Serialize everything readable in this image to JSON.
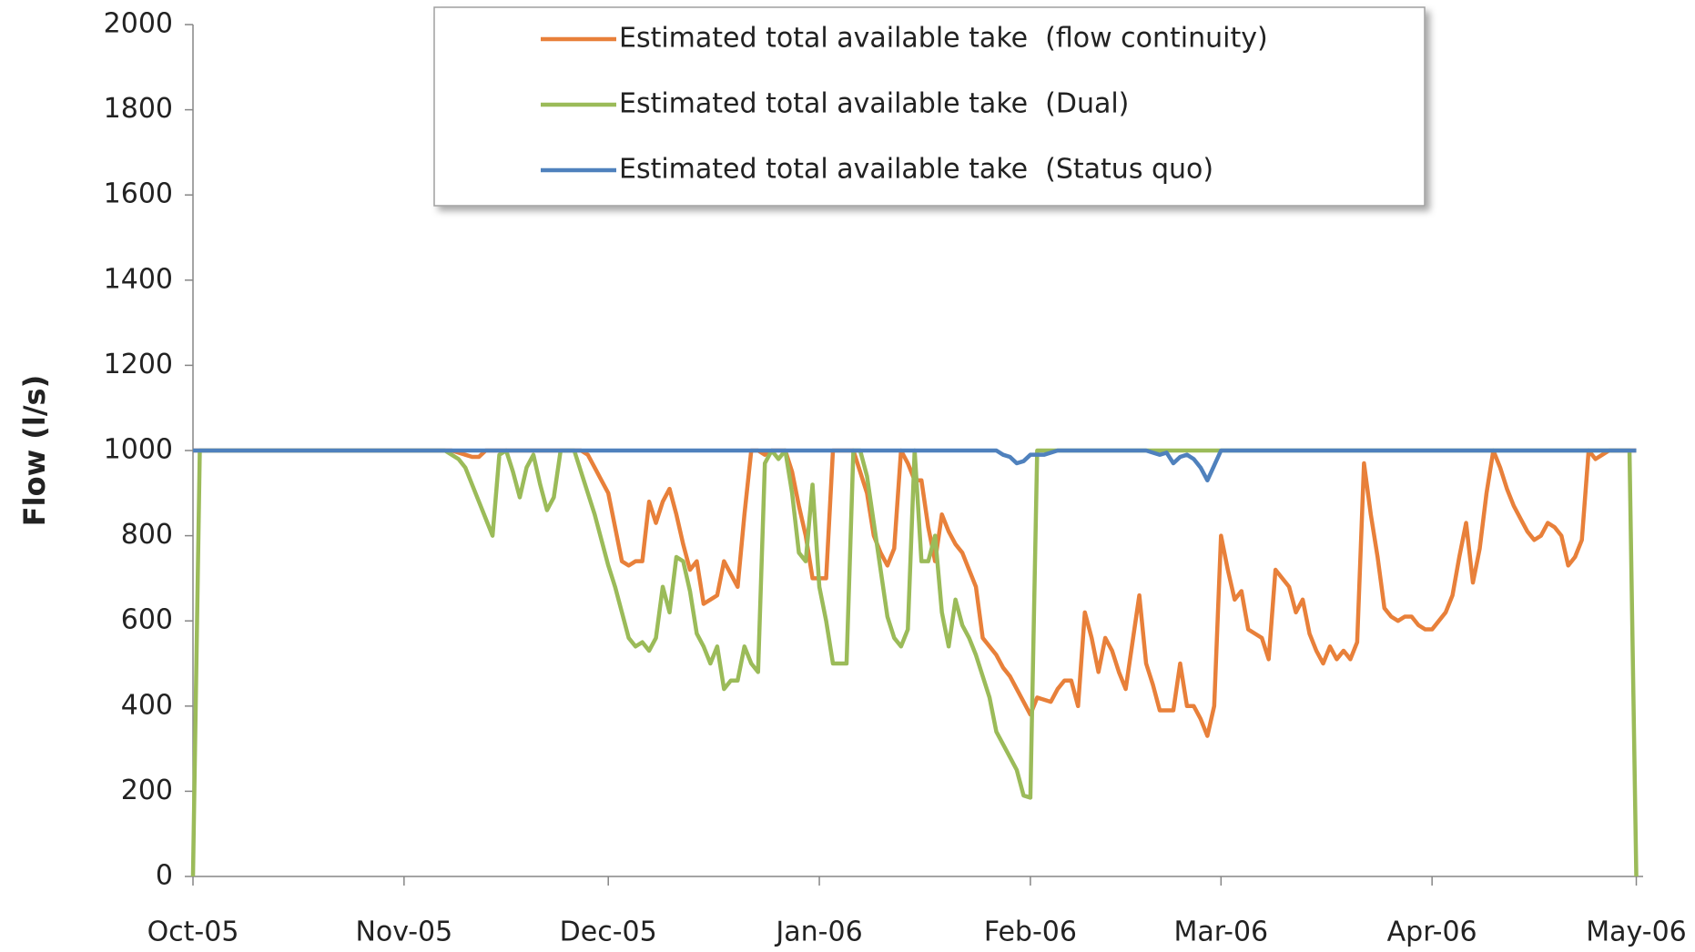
{
  "chart_data": {
    "type": "line",
    "y_label": "Flow (l/s)",
    "x": [
      0,
      1,
      10,
      20,
      30,
      36,
      37,
      38,
      39,
      40,
      41,
      42,
      43,
      44,
      45,
      46,
      47,
      48,
      49,
      50,
      51,
      52,
      53,
      54,
      55,
      56,
      57,
      58,
      59,
      60,
      61,
      62,
      63,
      64,
      65,
      66,
      67,
      68,
      69,
      70,
      71,
      72,
      73,
      74,
      75,
      76,
      77,
      78,
      79,
      80,
      81,
      82,
      83,
      84,
      85,
      86,
      87,
      88,
      89,
      90,
      91,
      92,
      93,
      94,
      95,
      96,
      97,
      98,
      99,
      100,
      101,
      102,
      103,
      104,
      105,
      106,
      107,
      108,
      109,
      110,
      111,
      112,
      113,
      114,
      115,
      116,
      117,
      118,
      119,
      120,
      121,
      122,
      123,
      124,
      125,
      126,
      127,
      128,
      129,
      130,
      131,
      132,
      133,
      134,
      135,
      136,
      137,
      138,
      139,
      140,
      141,
      142,
      143,
      144,
      145,
      146,
      147,
      148,
      149,
      150,
      151,
      152,
      153,
      154,
      155,
      156,
      157,
      158,
      159,
      160,
      161,
      162,
      163,
      164,
      165,
      166,
      167,
      168,
      169,
      170,
      171,
      172,
      173,
      174,
      175,
      176,
      177,
      178,
      179,
      180,
      181,
      182,
      183,
      184,
      185,
      186,
      187,
      188,
      189,
      190,
      191,
      192,
      193,
      194,
      195,
      196,
      197,
      198,
      199,
      200,
      201,
      202,
      203,
      204,
      205,
      206,
      207,
      208,
      209,
      210,
      211,
      212
    ],
    "series": [
      {
        "name": "Estimated total available take  (flow continuity)",
        "color": "#e8803a",
        "values": [
          1000,
          1000,
          1000,
          1000,
          1000,
          1000,
          1000,
          1000,
          995,
          990,
          985,
          985,
          1000,
          1000,
          1000,
          1000,
          1000,
          1000,
          1000,
          1000,
          1000,
          1000,
          1000,
          1000,
          1000,
          1000,
          1000,
          990,
          960,
          930,
          900,
          820,
          740,
          730,
          740,
          740,
          880,
          830,
          880,
          910,
          850,
          780,
          720,
          740,
          640,
          650,
          660,
          740,
          710,
          680,
          850,
          1000,
          1000,
          990,
          1000,
          1000,
          1000,
          950,
          870,
          800,
          700,
          700,
          700,
          1000,
          1000,
          1000,
          1000,
          950,
          900,
          800,
          760,
          730,
          770,
          1000,
          970,
          930,
          930,
          820,
          740,
          850,
          810,
          780,
          760,
          720,
          680,
          560,
          540,
          520,
          490,
          470,
          440,
          410,
          380,
          420,
          415,
          410,
          440,
          460,
          460,
          400,
          620,
          560,
          480,
          560,
          530,
          480,
          440,
          550,
          660,
          500,
          450,
          390,
          390,
          390,
          500,
          400,
          400,
          370,
          330,
          400,
          800,
          720,
          650,
          670,
          580,
          570,
          560,
          510,
          720,
          700,
          680,
          620,
          650,
          570,
          530,
          500,
          540,
          510,
          530,
          510,
          550,
          970,
          850,
          750,
          630,
          610,
          600,
          610,
          610,
          590,
          580,
          580,
          600,
          620,
          660,
          750,
          830,
          690,
          770,
          900,
          1000,
          960,
          910,
          870,
          840,
          810,
          790,
          800,
          830,
          820,
          800,
          730,
          750,
          790,
          1000,
          980,
          990,
          1000,
          1000,
          1000,
          1000,
          1000
        ]
      },
      {
        "name": "Estimated total available take  (Dual)",
        "color": "#9bbb59",
        "values": [
          0,
          1000,
          1000,
          1000,
          1000,
          1000,
          1000,
          990,
          980,
          960,
          920,
          880,
          840,
          800,
          990,
          1000,
          950,
          890,
          960,
          990,
          920,
          860,
          890,
          1000,
          1000,
          1000,
          950,
          900,
          850,
          790,
          730,
          680,
          620,
          560,
          540,
          550,
          530,
          560,
          680,
          620,
          750,
          740,
          670,
          570,
          540,
          500,
          540,
          440,
          460,
          460,
          540,
          500,
          480,
          970,
          1000,
          980,
          1000,
          900,
          760,
          740,
          920,
          680,
          600,
          500,
          500,
          500,
          1000,
          1000,
          940,
          830,
          720,
          610,
          560,
          540,
          580,
          1000,
          740,
          740,
          800,
          620,
          540,
          650,
          590,
          560,
          520,
          470,
          420,
          340,
          310,
          280,
          250,
          190,
          185,
          1000,
          1000,
          1000,
          1000,
          1000,
          1000,
          1000,
          1000,
          1000,
          1000,
          1000,
          1000,
          1000,
          1000,
          1000,
          1000,
          1000,
          1000,
          1000,
          1000,
          1000,
          1000,
          1000,
          1000,
          1000,
          1000,
          1000,
          1000,
          1000,
          1000,
          1000,
          1000,
          1000,
          1000,
          1000,
          1000,
          1000,
          1000,
          1000,
          1000,
          1000,
          1000,
          1000,
          1000,
          1000,
          1000,
          1000,
          1000,
          1000,
          1000,
          1000,
          1000,
          1000,
          1000,
          1000,
          1000,
          1000,
          1000,
          1000,
          1000,
          1000,
          1000,
          1000,
          1000,
          1000,
          1000,
          1000,
          1000,
          1000,
          1000,
          1000,
          1000,
          1000,
          1000,
          1000,
          1000,
          1000,
          1000,
          1000,
          1000,
          1000,
          1000,
          1000,
          1000,
          1000,
          1000,
          1000,
          1000,
          0
        ]
      },
      {
        "name": "Estimated total available take  (Status quo)",
        "color": "#4f81bd",
        "values": [
          1000,
          1000,
          1000,
          1000,
          1000,
          1000,
          1000,
          1000,
          1000,
          1000,
          1000,
          1000,
          1000,
          1000,
          1000,
          1000,
          1000,
          1000,
          1000,
          1000,
          1000,
          1000,
          1000,
          1000,
          1000,
          1000,
          1000,
          1000,
          1000,
          1000,
          1000,
          1000,
          1000,
          1000,
          1000,
          1000,
          1000,
          1000,
          1000,
          1000,
          1000,
          1000,
          1000,
          1000,
          1000,
          1000,
          1000,
          1000,
          1000,
          1000,
          1000,
          1000,
          1000,
          1000,
          1000,
          1000,
          1000,
          1000,
          1000,
          1000,
          1000,
          1000,
          1000,
          1000,
          1000,
          1000,
          1000,
          1000,
          1000,
          1000,
          1000,
          1000,
          1000,
          1000,
          1000,
          1000,
          1000,
          1000,
          1000,
          1000,
          1000,
          1000,
          1000,
          1000,
          1000,
          1000,
          1000,
          1000,
          990,
          985,
          970,
          975,
          990,
          990,
          990,
          995,
          1000,
          1000,
          1000,
          1000,
          1000,
          1000,
          1000,
          1000,
          1000,
          1000,
          1000,
          1000,
          1000,
          1000,
          995,
          990,
          995,
          970,
          985,
          990,
          980,
          960,
          930,
          965,
          1000,
          1000,
          1000,
          1000,
          1000,
          1000,
          1000,
          1000,
          1000,
          1000,
          1000,
          1000,
          1000,
          1000,
          1000,
          1000,
          1000,
          1000,
          1000,
          1000,
          1000,
          1000,
          1000,
          1000,
          1000,
          1000,
          1000,
          1000,
          1000,
          1000,
          1000,
          1000,
          1000,
          1000,
          1000,
          1000,
          1000,
          1000,
          1000,
          1000,
          1000,
          1000,
          1000,
          1000,
          1000,
          1000,
          1000,
          1000,
          1000,
          1000,
          1000,
          1000,
          1000,
          1000,
          1000,
          1000,
          1000,
          1000,
          1000,
          1000,
          1000,
          1000
        ]
      }
    ],
    "xlim": [
      0,
      213
    ],
    "xticks": [
      {
        "value": 0,
        "label": "Oct-05"
      },
      {
        "value": 31,
        "label": "Nov-05"
      },
      {
        "value": 61,
        "label": "Dec-05"
      },
      {
        "value": 92,
        "label": "Jan-06"
      },
      {
        "value": 123,
        "label": "Feb-06"
      },
      {
        "value": 151,
        "label": "Mar-06"
      },
      {
        "value": 182,
        "label": "Apr-06"
      },
      {
        "value": 212,
        "label": "May-06"
      }
    ],
    "ylim": [
      0,
      2000
    ],
    "yticks": [
      0,
      200,
      400,
      600,
      800,
      1000,
      1200,
      1400,
      1600,
      1800,
      2000
    ],
    "grid": false,
    "legend": "top"
  }
}
